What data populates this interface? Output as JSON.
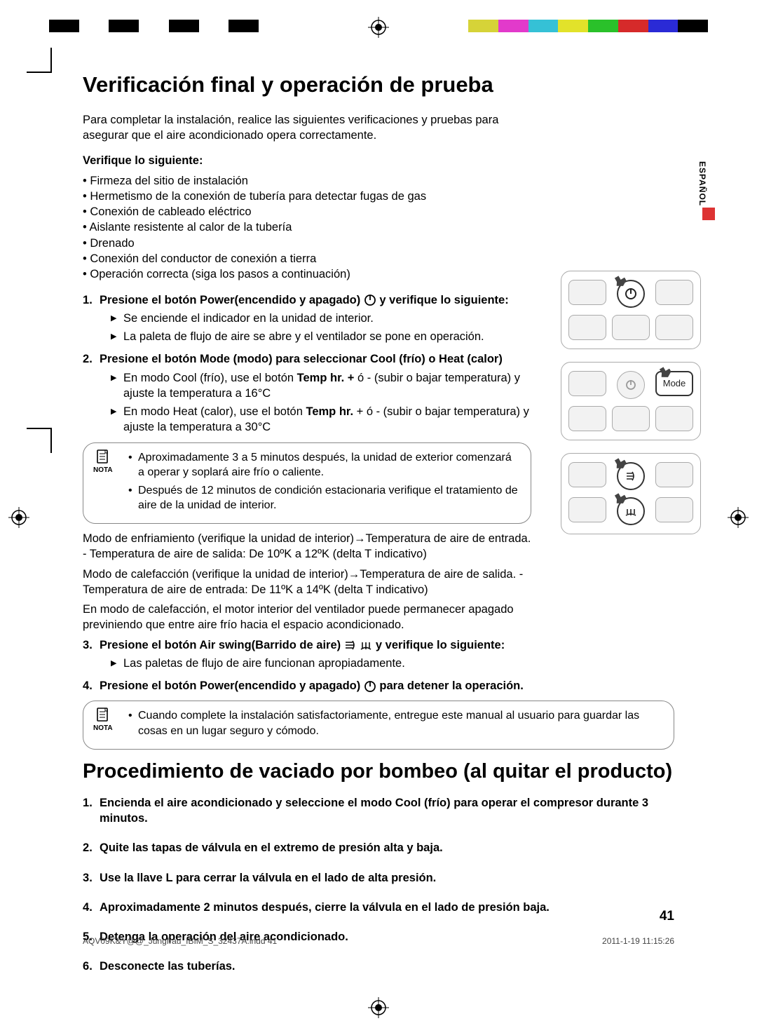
{
  "print_colorbar": [
    "#000000",
    "#ffffff",
    "#000000",
    "#ffffff",
    "#000000",
    "#ffffff",
    "#000000",
    "#ffffff",
    "#ffffff",
    "#ffffff",
    "#ffffff",
    "#ffffff",
    "#ffffff",
    "#ffffff",
    "#d6d338",
    "#e23acb",
    "#35c1d6",
    "#e2e22a",
    "#2ac12a",
    "#d62a2a",
    "#2a2ad6",
    "#000000"
  ],
  "title1": "Verificación final y operación de prueba",
  "intro": "Para completar la instalación, realice las siguientes verificaciones y pruebas para asegurar que el aire acondicionado opera correctamente.",
  "verify_heading": "Verifique lo siguiente:",
  "verify_items": [
    "Firmeza del sitio de instalación",
    "Hermetismo de la conexión de tubería para detectar fugas de gas",
    "Conexión de cableado eléctrico",
    "Aislante resistente al calor de la tubería",
    "Drenado",
    "Conexión del conductor de conexión a tierra",
    "Operación correcta (siga los pasos a continuación)"
  ],
  "step1": {
    "label": "Presione el botón Power(encendido y apagado)",
    "tail": "y verifique lo siguiente:",
    "subs": [
      "Se enciende el indicador en la unidad de interior.",
      "La paleta de flujo de aire se abre y el ventilador se pone en operación."
    ]
  },
  "step2": {
    "label": "Presione el botón Mode (modo) para seleccionar Cool (frío) o Heat (calor)",
    "subs_rich": [
      {
        "pre": "En modo Cool (frío), use el botón ",
        "bold": "Temp hr. +",
        "post": " ó -  (subir o bajar temperatura) y ajuste la temperatura a 16°C"
      },
      {
        "pre": "En modo Heat (calor), use el botón ",
        "bold": "Temp hr.",
        "post": " + ó - (subir o bajar temperatura) y ajuste la temperatura a 30°C"
      }
    ]
  },
  "note1_label": "NOTA",
  "note1_items": [
    "Aproximadamente 3 a 5 minutos después, la unidad de exterior comenzará a operar y soplará aire frío o caliente.",
    "Después de 12 minutos de condición estacionaria verifique el tratamiento de aire de la unidad de interior."
  ],
  "paras": [
    "Modo de enfriamiento (verifique la unidad de interior)→Temperatura de aire de entrada. - Temperatura de aire de salida: De 10ºK a 12ºK (delta T indicativo)",
    "Modo de calefacción (verifique la unidad de interior)→Temperatura de aire de salida. - Temperatura de aire de entrada: De 11ºK a 14ºK (delta T indicativo)",
    "En modo de calefacción, el motor interior del ventilador puede permanecer apagado previniendo que entre aire frío hacia el espacio acondicionado."
  ],
  "step3": {
    "label_pre": "Presione el botón Air swing(Barrido de aire)",
    "label_post": "y verifique lo siguiente:",
    "subs": [
      "Las paletas de flujo de aire funcionan apropiadamente."
    ]
  },
  "step4": {
    "label_pre": "Presione el botón Power(encendido y apagado)",
    "label_post": "para detener la operación."
  },
  "note2_items": [
    "Cuando complete la instalación satisfactoriamente, entregue este manual al usuario para guardar las cosas en un lugar seguro y cómodo."
  ],
  "title2": "Procedimiento de vaciado por bombeo (al quitar el producto)",
  "pump_steps": [
    "Encienda el aire acondicionado y seleccione el modo Cool (frío) para operar el compresor durante 3 minutos.",
    "Quite las tapas de válvula en el extremo de presión alta y baja.",
    "Use la llave L para cerrar la válvula en el lado de alta presión.",
    "Aproximadamente 2 minutos después, cierre la válvula en el lado de presión baja.",
    "Detenga la operación del aire acondicionado.",
    "Desconecte las tuberías."
  ],
  "pump_step_suffix": " .",
  "lang_tab": "ESPAÑOL",
  "remote": {
    "mode_label": "Mode",
    "colors": {
      "btn_bg": "#f2f2f2",
      "btn_border": "#aaaaaa",
      "hl_border": "#333333"
    }
  },
  "page_number": "41",
  "footer_left": "AQV09K&Y@@_Jungfrau_IBIM_S_32437A.indd   41",
  "footer_right": "2011-1-19   11:15:26"
}
